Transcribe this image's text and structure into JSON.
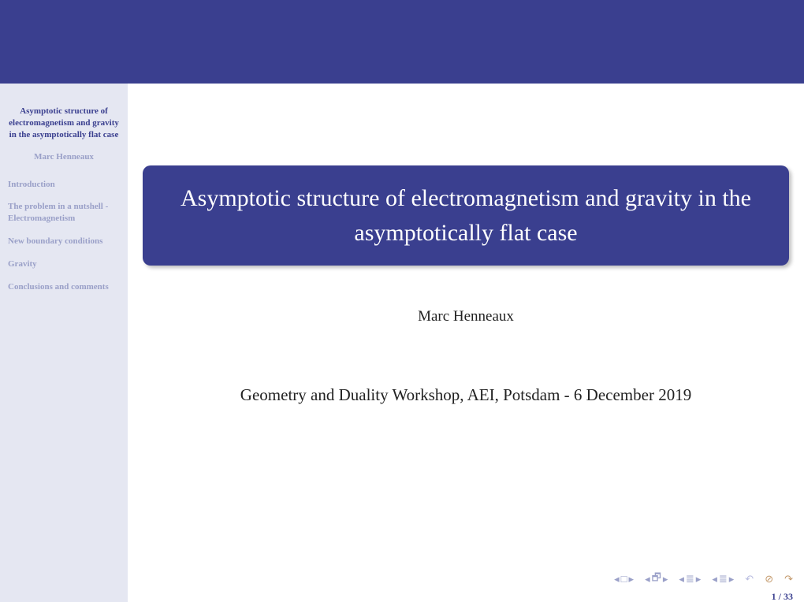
{
  "colors": {
    "theme": "#3a3f8f",
    "sidebar_bg": "#e5e7f2",
    "muted": "#9aa0c8",
    "page_bg": "#ffffff",
    "shadow": "rgba(0,0,0,0.25)",
    "nav_accent": "#c49a6c"
  },
  "sidebar": {
    "title": "Asymptotic structure of electromagnetism and gravity in the asymptotically flat case",
    "author": "Marc Henneaux",
    "items": [
      {
        "label": "Introduction"
      },
      {
        "label": "The problem in a nutshell - Electromagnetism"
      },
      {
        "label": "New boundary conditions"
      },
      {
        "label": "Gravity"
      },
      {
        "label": "Conclusions and comments"
      }
    ]
  },
  "main": {
    "title": "Asymptotic structure of electromagnetism and gravity in the asymptotically flat case",
    "author": "Marc Henneaux",
    "venue": "Geometry and Duality Workshop, AEI, Potsdam - 6 December 2019"
  },
  "footer": {
    "page": "1 / 33"
  }
}
